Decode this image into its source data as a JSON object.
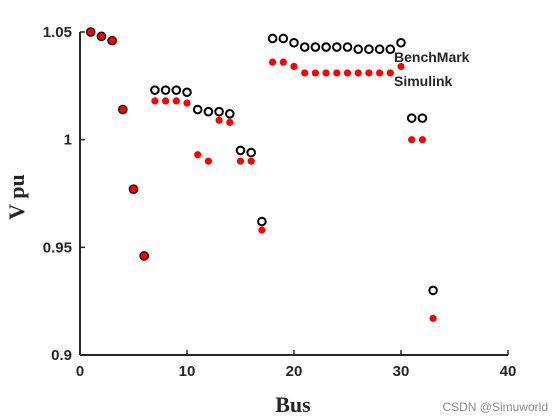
{
  "chart_data": {
    "type": "scatter",
    "xlabel": "Bus",
    "ylabel": "V pu",
    "xlim": [
      0,
      40
    ],
    "ylim": [
      0.9,
      1.05
    ],
    "xticks": [
      0,
      10,
      20,
      30,
      40
    ],
    "yticks": [
      0.9,
      0.95,
      1,
      1.05
    ],
    "ytick_labels": [
      "0.9",
      "0.95",
      "1",
      "1.05"
    ],
    "legend_placement": "inside-top-right",
    "grid": false,
    "series": [
      {
        "name": "BenchMark",
        "marker": "open-circle",
        "color": "#000000",
        "x": [
          1,
          2,
          3,
          4,
          5,
          6,
          7,
          8,
          9,
          10,
          11,
          12,
          13,
          14,
          15,
          16,
          17,
          18,
          19,
          20,
          21,
          22,
          23,
          24,
          25,
          26,
          27,
          28,
          29,
          30,
          31,
          32,
          33
        ],
        "y": [
          1.05,
          1.048,
          1.046,
          1.014,
          0.977,
          0.946,
          1.023,
          1.023,
          1.023,
          1.022,
          1.014,
          1.013,
          1.013,
          1.012,
          0.995,
          0.994,
          0.962,
          1.047,
          1.047,
          1.045,
          1.043,
          1.043,
          1.043,
          1.043,
          1.043,
          1.042,
          1.042,
          1.042,
          1.042,
          1.045,
          1.01,
          1.01,
          0.93
        ]
      },
      {
        "name": "Simulink",
        "marker": "filled-dot",
        "color": "#ff0000",
        "x": [
          1,
          2,
          3,
          4,
          5,
          6,
          7,
          8,
          9,
          10,
          11,
          12,
          13,
          14,
          15,
          16,
          17,
          18,
          19,
          20,
          21,
          22,
          23,
          24,
          25,
          26,
          27,
          28,
          29,
          30,
          31,
          32,
          33
        ],
        "y": [
          1.05,
          1.048,
          1.046,
          1.014,
          0.977,
          0.946,
          1.018,
          1.018,
          1.018,
          1.017,
          0.993,
          0.99,
          1.009,
          1.008,
          0.99,
          0.99,
          0.958,
          1.036,
          1.036,
          1.034,
          1.031,
          1.031,
          1.031,
          1.031,
          1.031,
          1.031,
          1.031,
          1.031,
          1.031,
          1.034,
          1.0,
          1.0,
          0.917
        ]
      }
    ]
  },
  "watermark": "CSDN @Simuworld"
}
